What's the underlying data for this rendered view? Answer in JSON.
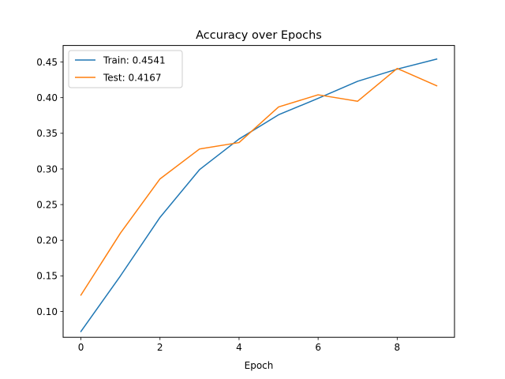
{
  "chart_data": {
    "type": "line",
    "title": "Accuracy over Epochs",
    "xlabel": "Epoch",
    "ylabel": "",
    "xlim": [
      -0.45,
      9.45
    ],
    "ylim": [
      0.0638,
      0.4732
    ],
    "xticks": [
      0,
      2,
      4,
      6,
      8
    ],
    "yticks": [
      0.1,
      0.15,
      0.2,
      0.25,
      0.3,
      0.35,
      0.4,
      0.45
    ],
    "x": [
      0,
      1,
      2,
      3,
      4,
      5,
      6,
      7,
      8,
      9
    ],
    "series": [
      {
        "name": "Train: 0.4541",
        "color": "#1f77b4",
        "values": [
          0.072,
          0.15,
          0.232,
          0.299,
          0.342,
          0.376,
          0.399,
          0.423,
          0.44,
          0.4541
        ]
      },
      {
        "name": "Test: 0.4167",
        "color": "#ff7f0e",
        "values": [
          0.123,
          0.21,
          0.286,
          0.328,
          0.337,
          0.387,
          0.404,
          0.395,
          0.441,
          0.4167
        ]
      }
    ],
    "grid": false,
    "legend": "top-left"
  }
}
